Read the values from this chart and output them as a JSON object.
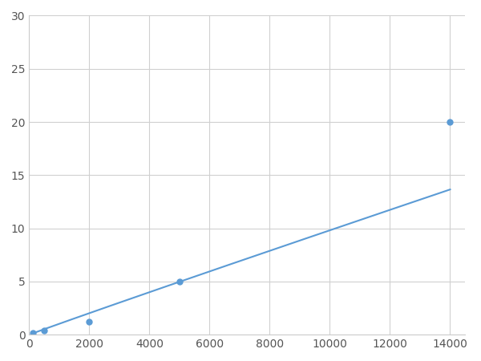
{
  "x_data": [
    125,
    500,
    2000,
    5000,
    14000
  ],
  "y_data": [
    0.2,
    0.4,
    1.2,
    5.0,
    20.0
  ],
  "line_color": "#5b9bd5",
  "marker_color": "#5b9bd5",
  "marker_size": 5,
  "xlim": [
    0,
    14500
  ],
  "ylim": [
    0,
    30
  ],
  "xticks": [
    0,
    2000,
    4000,
    6000,
    8000,
    10000,
    12000,
    14000
  ],
  "yticks": [
    0,
    5,
    10,
    15,
    20,
    25,
    30
  ],
  "xtick_labels": [
    "0",
    "2000",
    "4000",
    "6000",
    "8000",
    "10000",
    "12000",
    "14000"
  ],
  "ytick_labels": [
    "0",
    "5",
    "10",
    "15",
    "20",
    "25",
    "30"
  ],
  "grid_color": "#d0d0d0",
  "background_color": "#ffffff",
  "tick_fontsize": 10,
  "power_law_a": 0.000389,
  "power_law_b": 1.48
}
